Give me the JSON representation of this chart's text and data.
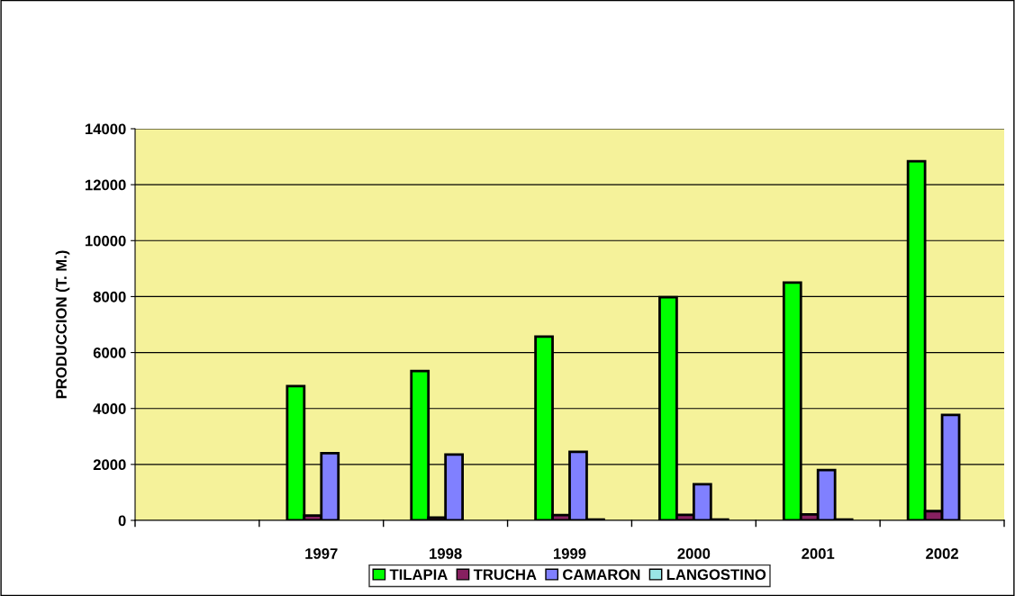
{
  "chart_data": {
    "type": "bar",
    "ylabel": "PRODUCCION (T. M.)",
    "categories": [
      null,
      "1997",
      "1998",
      "1999",
      "2000",
      "2001",
      "2002"
    ],
    "series": [
      {
        "name": "TILAPIA",
        "color": "#00ff00",
        "values": [
          null,
          4800,
          5340,
          6570,
          7980,
          8500,
          12840
        ]
      },
      {
        "name": "TRUCHA",
        "color": "#872060",
        "values": [
          null,
          170,
          100,
          190,
          200,
          210,
          330
        ]
      },
      {
        "name": "CAMARON",
        "color": "#8080ff",
        "values": [
          null,
          2400,
          2350,
          2450,
          1290,
          1800,
          3770
        ]
      },
      {
        "name": "LANGOSTINO",
        "color": "#99e6e6",
        "values": [
          null,
          null,
          null,
          30,
          30,
          30,
          null
        ]
      }
    ],
    "ylim": [
      0,
      14000
    ],
    "yticks": [
      0,
      2000,
      4000,
      6000,
      8000,
      10000,
      12000,
      14000
    ],
    "grid": "y",
    "legend": "bottom"
  }
}
